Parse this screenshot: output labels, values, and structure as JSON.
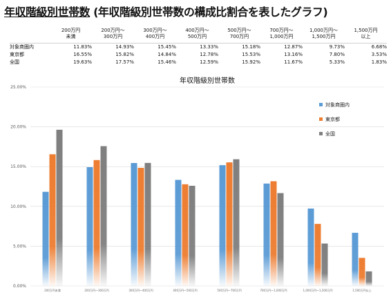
{
  "page": {
    "title_main": "年収階級別世帯数",
    "title_sub": " (年収階級別世帯数の構成比割合を表したグラフ)"
  },
  "table": {
    "headers": [
      [
        "200万円",
        "未満"
      ],
      [
        "200万円～",
        "300万円"
      ],
      [
        "300万円～",
        "400万円"
      ],
      [
        "400万円～",
        "500万円"
      ],
      [
        "500万円～",
        "700万円"
      ],
      [
        "700万円～",
        "1,000万円"
      ],
      [
        "1,000万円～",
        "1,500万円"
      ],
      [
        "1,500万円",
        "以上"
      ]
    ],
    "rows": [
      {
        "name": "対象商圏内",
        "values": [
          "11.83%",
          "14.93%",
          "15.45%",
          "13.33%",
          "15.18%",
          "12.87%",
          "9.73%",
          "6.68%"
        ]
      },
      {
        "name": "東京都",
        "values": [
          "16.55%",
          "15.82%",
          "14.84%",
          "12.78%",
          "15.53%",
          "13.16%",
          "7.80%",
          "3.53%"
        ]
      },
      {
        "name": "全国",
        "values": [
          "19.63%",
          "17.57%",
          "15.46%",
          "12.59%",
          "15.92%",
          "11.67%",
          "5.33%",
          "1.83%"
        ]
      }
    ]
  },
  "chart_data": {
    "type": "bar",
    "title": "年収階級別世帯数",
    "categories": [
      "200万円未満",
      "200万円～300万円",
      "300万円～400万円",
      "400万円～500万円",
      "500万円～700万円",
      "700万円～1,000万円",
      "1,000万円～1,500万円",
      "1,500万円以上"
    ],
    "series": [
      {
        "name": "対象商圏内",
        "color": "#5b9bd5",
        "values": [
          11.83,
          14.93,
          15.45,
          13.33,
          15.18,
          12.87,
          9.73,
          6.68
        ]
      },
      {
        "name": "東京都",
        "color": "#ed7d31",
        "values": [
          16.55,
          15.82,
          14.84,
          12.78,
          15.53,
          13.16,
          7.8,
          3.53
        ]
      },
      {
        "name": "全国",
        "color": "#7f7f7f",
        "values": [
          19.63,
          17.57,
          15.46,
          12.59,
          15.92,
          11.67,
          5.33,
          1.83
        ]
      }
    ],
    "yticks": [
      "0.00%",
      "5.00%",
      "10.00%",
      "15.00%",
      "20.00%",
      "25.00%"
    ],
    "ylim": [
      0,
      25
    ],
    "grid": true,
    "legend_position": "right"
  }
}
